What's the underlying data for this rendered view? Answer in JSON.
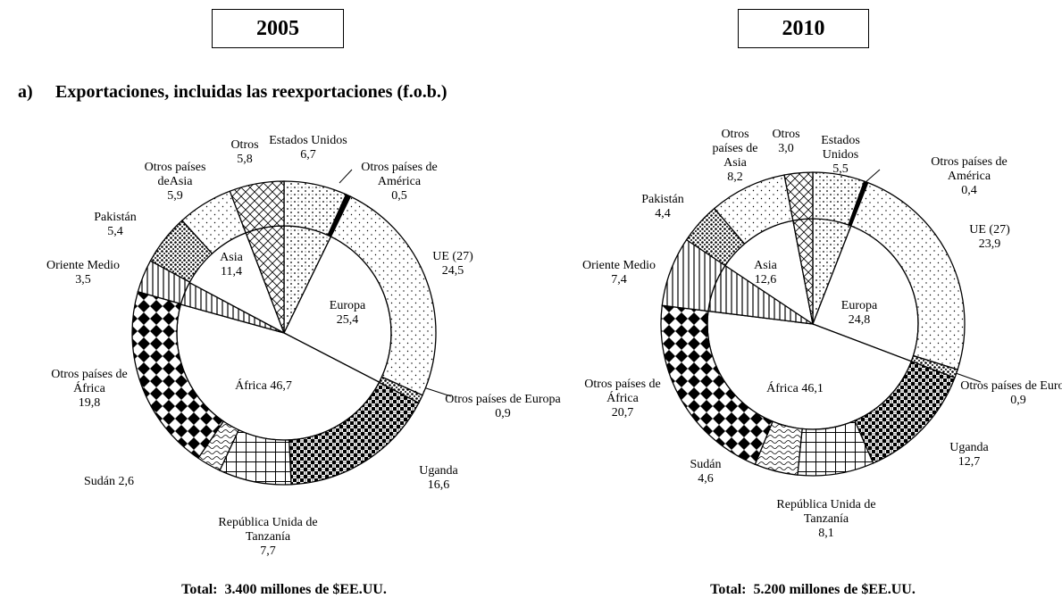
{
  "heading_marker": "a)",
  "heading": "Exportaciones, incluidas las reexportaciones (f.o.b.)",
  "chart_data": [
    {
      "type": "pie",
      "title": "2005",
      "footer": "Total:  3.400 millones de $EE.UU.",
      "inner": {
        "categories": [
          null,
          "Europa",
          "África",
          null,
          "Asia",
          null
        ],
        "values": [
          7.2,
          25.4,
          46.7,
          3.5,
          11.4,
          5.8
        ],
        "value_labels": [
          null,
          "25,4",
          "46,7",
          null,
          "11,4",
          null
        ]
      },
      "outer": {
        "categories": [
          "Estados Unidos",
          "Otros países de América",
          "UE (27)",
          "Otros países de Europa",
          "Uganda",
          "República Unida de Tanzanía",
          "Sudán",
          "Otros países de África",
          "Oriente Medio",
          "Pakistán",
          "Otros países deAsia",
          "Otros"
        ],
        "values": [
          6.7,
          0.5,
          24.5,
          0.9,
          16.6,
          7.7,
          2.6,
          19.8,
          3.5,
          5.4,
          5.9,
          5.8
        ],
        "value_labels": [
          "6,7",
          "0,5",
          "24,5",
          "0,9",
          "16,6",
          "7,7",
          "2,6",
          "19,8",
          "3,5",
          "5,4",
          "5,9",
          "5,8"
        ]
      }
    },
    {
      "type": "pie",
      "title": "2010",
      "footer": "Total:  5.200 millones de $EE.UU.",
      "inner": {
        "categories": [
          null,
          "Europa",
          "África",
          null,
          "Asia",
          null
        ],
        "values": [
          5.9,
          24.8,
          46.1,
          7.4,
          12.6,
          3.0
        ],
        "value_labels": [
          null,
          "24,8",
          "46,1",
          null,
          "12,6",
          null
        ]
      },
      "outer": {
        "categories": [
          "Estados Unidos",
          "Otros países de América",
          "UE (27)",
          "Otros países de Europa",
          "Uganda",
          "República Unida de Tanzanía",
          "Sudán",
          "Otros países de África",
          "Oriente Medio",
          "Pakistán",
          "Otros países de Asia",
          "Otros"
        ],
        "values": [
          5.5,
          0.4,
          23.9,
          0.9,
          12.7,
          8.1,
          4.6,
          20.7,
          7.4,
          4.4,
          8.2,
          3.0
        ],
        "value_labels": [
          "5,5",
          "0,4",
          "23,9",
          "0,9",
          "12,7",
          "8,1",
          "4,6",
          "20,7",
          "7,4",
          "4,4",
          "8,2",
          "3,0"
        ]
      }
    }
  ]
}
